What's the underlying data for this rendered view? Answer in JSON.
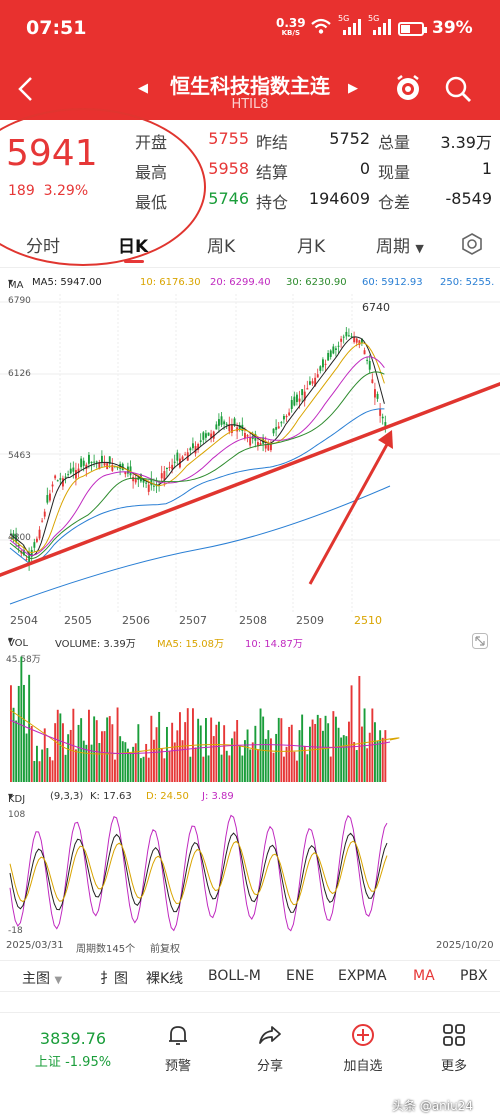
{
  "status": {
    "time": "07:51",
    "net_speed": "0.39",
    "net_unit": "KB/S",
    "sig1": "5G",
    "sig2": "5G",
    "battery": "39%"
  },
  "header": {
    "title": "恒生科技指数主连",
    "code": "HTIL8",
    "back_icon": "chevron-left-icon",
    "alarm_icon": "alarm-icon",
    "search_icon": "search-icon"
  },
  "quote": {
    "price": "5941",
    "change": "189",
    "change_pct": "3.29%",
    "rows": [
      {
        "l1": "开盘",
        "v1": "5755",
        "l2": "昨结",
        "v2": "5752",
        "l3": "总量",
        "v3": "3.39万"
      },
      {
        "l1": "最高",
        "v1": "5958",
        "l2": "结算",
        "v2": "0",
        "l3": "现量",
        "v3": "1"
      },
      {
        "l1": "最低",
        "v1": "5746",
        "l2": "持仓",
        "v2": "194609",
        "l3": "仓差",
        "v3": "-8549"
      }
    ]
  },
  "tabs": [
    "分时",
    "日K",
    "周K",
    "月K",
    "周期"
  ],
  "active_tab": "日K",
  "ma_legend": {
    "label": "MA",
    "ma5": "MA5: 5947.00",
    "ma10": "10: 6176.30",
    "ma20": "20: 6299.40",
    "ma30": "30: 6230.90",
    "ma60": "60: 5912.93",
    "ma250": "250: 5255."
  },
  "price_axis": [
    "6790",
    "6126",
    "5463",
    "4800"
  ],
  "peak_label": "6740",
  "month_labels": [
    "2504",
    "2505",
    "2506",
    "2507",
    "2508",
    "2509",
    "2510"
  ],
  "vol_legend": {
    "label": "VOL",
    "volume": "VOLUME: 3.39万",
    "ma5": "MA5: 15.08万",
    "ma10": "10: 14.87万",
    "axis_top": "45.58万"
  },
  "kdj_legend": {
    "label": "KDJ",
    "params": "(9,3,3)",
    "k": "K: 17.63",
    "d": "D: 24.50",
    "j": "J: 3.89",
    "axis_top": "108",
    "axis_bottom": "-18"
  },
  "footer_info": {
    "start": "2025/03/31",
    "period": "周期数145个",
    "adj": "前复权",
    "end": "2025/10/20"
  },
  "indicators": [
    "主图",
    "扌图",
    "裸K线",
    "BOLL-M",
    "ENE",
    "EXPMA",
    "MA",
    "PBX"
  ],
  "bottom_nav": {
    "index_value": "3839.76",
    "index_name": "上证",
    "index_change": "-1.95%",
    "items": [
      {
        "label": "预警",
        "icon": "bell-icon"
      },
      {
        "label": "分享",
        "icon": "share-icon"
      },
      {
        "label": "加自选",
        "icon": "add-circle-icon"
      },
      {
        "label": "更多",
        "icon": "grid-icon"
      }
    ]
  },
  "watermark": "头条 @aniu24",
  "colors": {
    "brand_red": "#e8312f",
    "up": "#e63737",
    "down": "#1a9d3a",
    "ma5": "#222222",
    "ma10": "#d9a400",
    "ma20": "#c02ac0",
    "ma30": "#2e8b2e",
    "ma60": "#2a7fd4"
  }
}
